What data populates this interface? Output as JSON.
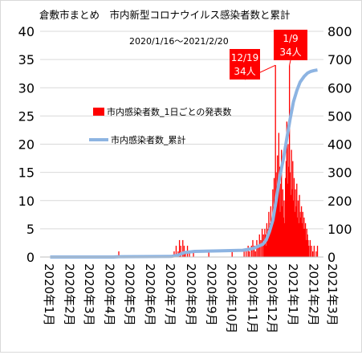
{
  "chart_data": {
    "type": "bar",
    "title": "倉敷市まとめ　市内新型コロナウイルス感染者数と累計",
    "subtitle": "2020/1/16〜2021/2/20",
    "y_left": {
      "ticks": [
        0,
        5,
        10,
        15,
        20,
        25,
        30,
        35,
        40
      ],
      "range": [
        0,
        40
      ]
    },
    "y_right": {
      "ticks": [
        0,
        100,
        200,
        300,
        400,
        500,
        600,
        700,
        800
      ],
      "range": [
        0,
        800
      ]
    },
    "x_ticks": [
      "2020年1月",
      "2020年2月",
      "2020年3月",
      "2020年4月",
      "2020年5月",
      "2020年6月",
      "2020年7月",
      "2020年8月",
      "2020年9月",
      "2020年10月",
      "2020年11月",
      "2020年12月",
      "2021年1月",
      "2021年2月",
      "2021年3月"
    ],
    "x_range": [
      "2020-01-01",
      "2021-03-01"
    ],
    "grid": true,
    "series": [
      {
        "name": "市内感染者数_1日ごとの発表数",
        "kind": "bar",
        "axis": "left",
        "color": "#FF0000",
        "points": [
          [
            "2020-04-28",
            1
          ],
          [
            "2020-07-20",
            1
          ],
          [
            "2020-07-23",
            2
          ],
          [
            "2020-07-26",
            1
          ],
          [
            "2020-07-28",
            3
          ],
          [
            "2020-07-30",
            2
          ],
          [
            "2020-08-02",
            3
          ],
          [
            "2020-08-04",
            2
          ],
          [
            "2020-08-06",
            1
          ],
          [
            "2020-08-09",
            2
          ],
          [
            "2020-08-12",
            1
          ],
          [
            "2020-08-18",
            1
          ],
          [
            "2020-09-10",
            1
          ],
          [
            "2020-10-15",
            1
          ],
          [
            "2020-11-02",
            1
          ],
          [
            "2020-11-05",
            1
          ],
          [
            "2020-11-08",
            2
          ],
          [
            "2020-11-10",
            1
          ],
          [
            "2020-11-13",
            2
          ],
          [
            "2020-11-15",
            3
          ],
          [
            "2020-11-17",
            2
          ],
          [
            "2020-11-19",
            1
          ],
          [
            "2020-11-21",
            3
          ],
          [
            "2020-11-23",
            2
          ],
          [
            "2020-11-25",
            4
          ],
          [
            "2020-11-27",
            3
          ],
          [
            "2020-11-29",
            5
          ],
          [
            "2020-12-01",
            4
          ],
          [
            "2020-12-02",
            3
          ],
          [
            "2020-12-03",
            5
          ],
          [
            "2020-12-04",
            4
          ],
          [
            "2020-12-05",
            2
          ],
          [
            "2020-12-06",
            6
          ],
          [
            "2020-12-07",
            3
          ],
          [
            "2020-12-08",
            5
          ],
          [
            "2020-12-09",
            8
          ],
          [
            "2020-12-10",
            4
          ],
          [
            "2020-12-11",
            6
          ],
          [
            "2020-12-12",
            9
          ],
          [
            "2020-12-13",
            5
          ],
          [
            "2020-12-14",
            7
          ],
          [
            "2020-12-15",
            12
          ],
          [
            "2020-12-16",
            6
          ],
          [
            "2020-12-17",
            14
          ],
          [
            "2020-12-18",
            10
          ],
          [
            "2020-12-19",
            34
          ],
          [
            "2020-12-20",
            15
          ],
          [
            "2020-12-21",
            9
          ],
          [
            "2020-12-22",
            18
          ],
          [
            "2020-12-23",
            11
          ],
          [
            "2020-12-24",
            22
          ],
          [
            "2020-12-25",
            16
          ],
          [
            "2020-12-26",
            8
          ],
          [
            "2020-12-27",
            13
          ],
          [
            "2020-12-28",
            19
          ],
          [
            "2020-12-29",
            9
          ],
          [
            "2020-12-30",
            12
          ],
          [
            "2020-12-31",
            7
          ],
          [
            "2021-01-01",
            10
          ],
          [
            "2021-01-02",
            6
          ],
          [
            "2021-01-03",
            14
          ],
          [
            "2021-01-04",
            17
          ],
          [
            "2021-01-05",
            24
          ],
          [
            "2021-01-06",
            13
          ],
          [
            "2021-01-07",
            20
          ],
          [
            "2021-01-08",
            16
          ],
          [
            "2021-01-09",
            34
          ],
          [
            "2021-01-10",
            15
          ],
          [
            "2021-01-11",
            11
          ],
          [
            "2021-01-12",
            19
          ],
          [
            "2021-01-13",
            12
          ],
          [
            "2021-01-14",
            17
          ],
          [
            "2021-01-15",
            10
          ],
          [
            "2021-01-16",
            14
          ],
          [
            "2021-01-17",
            8
          ],
          [
            "2021-01-18",
            12
          ],
          [
            "2021-01-19",
            9
          ],
          [
            "2021-01-20",
            13
          ],
          [
            "2021-01-21",
            7
          ],
          [
            "2021-01-22",
            10
          ],
          [
            "2021-01-23",
            6
          ],
          [
            "2021-01-24",
            11
          ],
          [
            "2021-01-25",
            8
          ],
          [
            "2021-01-26",
            7
          ],
          [
            "2021-01-27",
            9
          ],
          [
            "2021-01-28",
            6
          ],
          [
            "2021-01-29",
            8
          ],
          [
            "2021-01-30",
            5
          ],
          [
            "2021-01-31",
            7
          ],
          [
            "2021-02-01",
            5
          ],
          [
            "2021-02-02",
            6
          ],
          [
            "2021-02-03",
            3
          ],
          [
            "2021-02-04",
            5
          ],
          [
            "2021-02-05",
            4
          ],
          [
            "2021-02-06",
            3
          ],
          [
            "2021-02-07",
            2
          ],
          [
            "2021-02-09",
            3
          ],
          [
            "2021-02-11",
            2
          ],
          [
            "2021-02-13",
            1
          ],
          [
            "2021-02-15",
            2
          ],
          [
            "2021-02-18",
            1
          ],
          [
            "2021-02-20",
            2
          ]
        ]
      },
      {
        "name": "市内感染者数_累計",
        "kind": "line",
        "axis": "right",
        "color": "#8DB4E2",
        "points": [
          [
            "2020-01-16",
            0
          ],
          [
            "2020-04-20",
            0
          ],
          [
            "2020-04-28",
            1
          ],
          [
            "2020-07-15",
            2
          ],
          [
            "2020-07-25",
            6
          ],
          [
            "2020-08-05",
            16
          ],
          [
            "2020-08-20",
            20
          ],
          [
            "2020-09-30",
            22
          ],
          [
            "2020-10-31",
            24
          ],
          [
            "2020-11-15",
            30
          ],
          [
            "2020-11-30",
            45
          ],
          [
            "2020-12-05",
            60
          ],
          [
            "2020-12-10",
            90
          ],
          [
            "2020-12-15",
            130
          ],
          [
            "2020-12-20",
            200
          ],
          [
            "2020-12-25",
            280
          ],
          [
            "2020-12-31",
            350
          ],
          [
            "2021-01-05",
            420
          ],
          [
            "2021-01-10",
            490
          ],
          [
            "2021-01-15",
            550
          ],
          [
            "2021-01-20",
            590
          ],
          [
            "2021-01-25",
            620
          ],
          [
            "2021-01-31",
            640
          ],
          [
            "2021-02-05",
            652
          ],
          [
            "2021-02-10",
            658
          ],
          [
            "2021-02-15",
            661
          ],
          [
            "2021-02-20",
            663
          ]
        ]
      }
    ],
    "annotations": [
      {
        "date": "2020-12-19",
        "line1": "12/19",
        "line2": "34人"
      },
      {
        "date": "2021-01-09",
        "line1": "1/9",
        "line2": "34人"
      }
    ]
  }
}
